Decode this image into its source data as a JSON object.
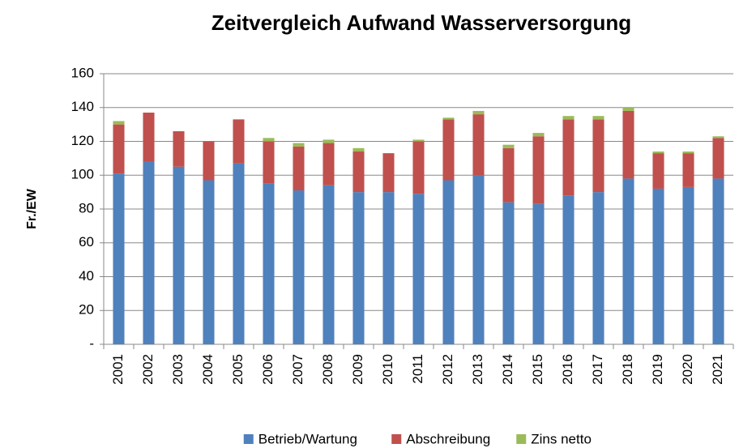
{
  "chart_data": {
    "type": "stacked_bar",
    "title": "Zeitvergleich Aufwand Wasserversorgung",
    "y_label": "Fr./EW",
    "categories": [
      "2001",
      "2002",
      "2003",
      "2004",
      "2005",
      "2006",
      "2007",
      "2008",
      "2009",
      "2010",
      "2011",
      "2012",
      "2013",
      "2014",
      "2015",
      "2016",
      "2017",
      "2018",
      "2019",
      "2020",
      "2021"
    ],
    "series": [
      {
        "name": "Betrieb/Wartung",
        "color": "#4f81bd",
        "values": [
          101,
          108,
          105,
          97,
          107,
          95,
          91,
          94,
          90,
          90,
          89,
          97,
          100,
          84,
          83,
          88,
          90,
          98,
          92,
          93,
          98
        ]
      },
      {
        "name": "Abschreibung",
        "color": "#c0504d",
        "values": [
          29,
          29,
          21,
          23,
          26,
          25,
          26,
          25,
          24,
          23,
          31,
          36,
          36,
          32,
          40,
          45,
          43,
          40,
          21,
          20,
          24
        ]
      },
      {
        "name": "Zins netto",
        "color": "#9bbb59",
        "values": [
          2,
          0,
          0,
          0,
          0,
          2,
          2,
          2,
          2,
          0,
          1,
          1,
          2,
          2,
          2,
          2,
          2,
          2,
          1,
          1,
          1
        ]
      }
    ],
    "ylim": [
      0,
      160
    ],
    "yticks": [
      {
        "value": 0,
        "label": "-"
      },
      20,
      40,
      60,
      80,
      100,
      120,
      140,
      160
    ],
    "grid": true,
    "legend": "bottom"
  }
}
